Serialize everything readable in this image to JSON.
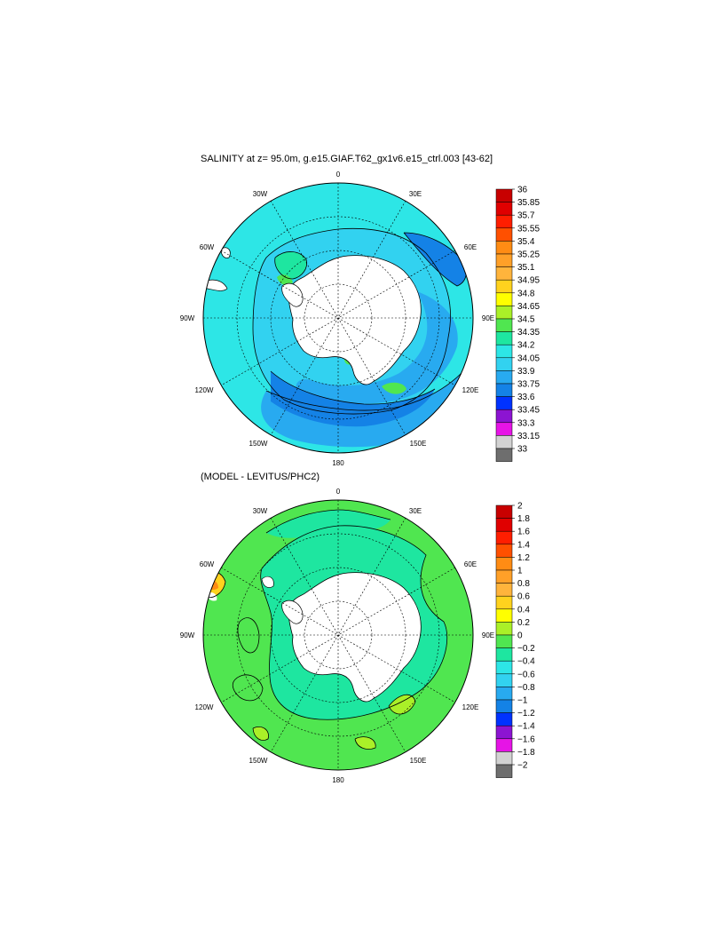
{
  "panel1": {
    "title": "SALINITY at z=  95.0m, g.e15.GIAF.T62_gx1v6.e15_ctrl.003 [43-62]",
    "lon_labels": {
      "n": "0",
      "ne": "30E",
      "e1": "60E",
      "e": "90E",
      "se1": "120E",
      "se": "150E",
      "s": "180",
      "sw": "150W",
      "w1": "120W",
      "w": "90W",
      "nw1": "60W",
      "nw": "30W"
    },
    "colorbar": {
      "labels": [
        "36",
        "35.85",
        "35.7",
        "35.55",
        "35.4",
        "35.25",
        "35.1",
        "34.95",
        "34.8",
        "34.65",
        "34.5",
        "34.35",
        "34.2",
        "34.05",
        "33.9",
        "33.75",
        "33.6",
        "33.45",
        "33.3",
        "33.15",
        "33"
      ],
      "colors": [
        "#c80000",
        "#e00000",
        "#ff1e00",
        "#ff5000",
        "#ff8c14",
        "#ffa028",
        "#ffb43c",
        "#ffd21e",
        "#ffff00",
        "#aaf028",
        "#50e650",
        "#1ee6a0",
        "#2de6e6",
        "#32d2f0",
        "#28aaf0",
        "#1482e6",
        "#0032ff",
        "#8c14d2",
        "#e614e6",
        "#d2d2d2",
        "#6e6e6e"
      ]
    }
  },
  "panel2": {
    "title": "(MODEL - LEVITUS/PHC2)",
    "lon_labels": {
      "n": "0",
      "ne": "30E",
      "e1": "60E",
      "e": "90E",
      "se1": "120E",
      "se": "150E",
      "s": "180",
      "sw": "150W",
      "w1": "120W",
      "w": "90W",
      "nw1": "60W",
      "nw": "30W"
    },
    "colorbar": {
      "labels": [
        "2",
        "1.8",
        "1.6",
        "1.4",
        "1.2",
        "1",
        "0.8",
        "0.6",
        "0.4",
        "0.2",
        "0",
        "−0.2",
        "−0.4",
        "−0.6",
        "−0.8",
        "−1",
        "−1.2",
        "−1.4",
        "−1.6",
        "−1.8",
        "−2"
      ],
      "colors": [
        "#c80000",
        "#e00000",
        "#ff1e00",
        "#ff5000",
        "#ff8c14",
        "#ffa028",
        "#ffb43c",
        "#ffd21e",
        "#ffff00",
        "#aaf028",
        "#50e650",
        "#1ee6a0",
        "#2de6e6",
        "#32d2f0",
        "#28aaf0",
        "#1482e6",
        "#0032ff",
        "#8c14d2",
        "#e614e6",
        "#d2d2d2",
        "#6e6e6e"
      ]
    }
  }
}
